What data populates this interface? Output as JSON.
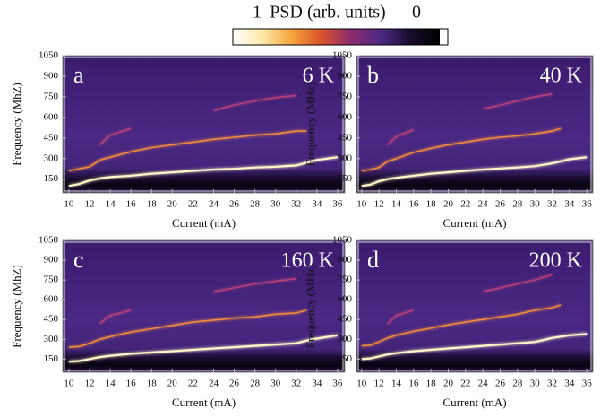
{
  "chart_data": [
    {
      "type": "colorbar",
      "title": "PSD (arb. units)",
      "xlim": [
        1,
        0
      ],
      "xticks": [
        1,
        0
      ],
      "colors": [
        "#ffffff",
        "#fde9a8",
        "#f7a33a",
        "#d9532c",
        "#8c2b6e",
        "#4b2a85",
        "#1a0d2e",
        "#000000"
      ]
    },
    {
      "type": "heatmap",
      "panel_label": "a",
      "annotation": "6 K",
      "xlabel": "Current (mA)",
      "ylabel": "Frequency (MhZ)",
      "xlim": [
        9.4,
        36.7
      ],
      "ylim": [
        50,
        1050
      ],
      "xticks": [
        10,
        12,
        14,
        16,
        18,
        20,
        22,
        24,
        26,
        28,
        30,
        32,
        34,
        36
      ],
      "yticks": [
        150,
        300,
        450,
        600,
        750,
        900,
        1050
      ],
      "x": [
        10,
        11,
        12,
        13,
        14,
        16,
        18,
        20,
        22,
        24,
        26,
        28,
        30,
        32,
        33,
        34,
        36
      ],
      "series": [
        {
          "color": "#fff6c8",
          "values": [
            100,
            115,
            140,
            155,
            165,
            175,
            190,
            200,
            210,
            220,
            225,
            235,
            240,
            250,
            270,
            290,
            310
          ]
        },
        {
          "color": "#f08a3c",
          "values": [
            210,
            225,
            240,
            290,
            310,
            350,
            380,
            400,
            420,
            440,
            455,
            470,
            480,
            500,
            500,
            null,
            null
          ]
        },
        {
          "color": "#b8407a",
          "values": [
            null,
            null,
            null,
            400,
            470,
            520,
            null,
            null,
            null,
            650,
            690,
            720,
            745,
            760,
            null,
            null,
            null
          ]
        }
      ]
    },
    {
      "type": "heatmap",
      "panel_label": "b",
      "annotation": "40 K",
      "xlabel": "Current (mA)",
      "ylabel": "Frequency (MHz)",
      "xlim": [
        9.4,
        36.7
      ],
      "ylim": [
        50,
        1050
      ],
      "xticks": [
        10,
        12,
        14,
        16,
        18,
        20,
        22,
        24,
        26,
        28,
        30,
        32,
        34,
        36
      ],
      "yticks": [
        150,
        300,
        450,
        600,
        750,
        900,
        1050
      ],
      "x": [
        10,
        11,
        12,
        13,
        14,
        16,
        18,
        20,
        22,
        24,
        26,
        28,
        30,
        32,
        33,
        34,
        36
      ],
      "series": [
        {
          "color": "#fff6c8",
          "values": [
            100,
            110,
            135,
            150,
            160,
            175,
            190,
            200,
            210,
            220,
            228,
            235,
            245,
            265,
            280,
            295,
            310
          ]
        },
        {
          "color": "#f08a3c",
          "values": [
            210,
            220,
            235,
            280,
            300,
            345,
            375,
            400,
            420,
            440,
            455,
            465,
            480,
            500,
            520,
            null,
            null
          ]
        },
        {
          "color": "#b8407a",
          "values": [
            null,
            null,
            null,
            400,
            460,
            510,
            null,
            null,
            null,
            660,
            690,
            720,
            750,
            770,
            null,
            null,
            null
          ]
        }
      ]
    },
    {
      "type": "heatmap",
      "panel_label": "c",
      "annotation": "160 K",
      "xlabel": "Current (mA)",
      "ylabel": "Frequency (MhZ)",
      "xlim": [
        9.4,
        36.7
      ],
      "ylim": [
        50,
        1050
      ],
      "xticks": [
        10,
        12,
        14,
        16,
        18,
        20,
        22,
        24,
        26,
        28,
        30,
        32,
        34,
        36
      ],
      "yticks": [
        150,
        300,
        450,
        600,
        750,
        900,
        1050
      ],
      "x": [
        10,
        11,
        12,
        13,
        14,
        16,
        18,
        20,
        22,
        24,
        26,
        28,
        30,
        32,
        33,
        34,
        36
      ],
      "series": [
        {
          "color": "#fff6c8",
          "values": [
            130,
            135,
            150,
            165,
            175,
            190,
            200,
            210,
            220,
            230,
            240,
            250,
            260,
            270,
            290,
            305,
            330
          ]
        },
        {
          "color": "#f08a3c",
          "values": [
            240,
            245,
            270,
            300,
            320,
            355,
            380,
            405,
            430,
            445,
            460,
            470,
            490,
            500,
            520,
            null,
            null
          ]
        },
        {
          "color": "#b8407a",
          "values": [
            null,
            null,
            null,
            420,
            480,
            520,
            null,
            null,
            null,
            660,
            690,
            720,
            740,
            760,
            null,
            null,
            null
          ]
        }
      ]
    },
    {
      "type": "heatmap",
      "panel_label": "d",
      "annotation": "200 K",
      "xlabel": "Current (mA)",
      "ylabel": "Frequency (MHz)",
      "xlim": [
        9.4,
        36.7
      ],
      "ylim": [
        50,
        1050
      ],
      "xticks": [
        10,
        12,
        14,
        16,
        18,
        20,
        22,
        24,
        26,
        28,
        30,
        32,
        34,
        36
      ],
      "yticks": [
        150,
        300,
        450,
        600,
        750,
        900,
        1050
      ],
      "x": [
        10,
        11,
        12,
        13,
        14,
        16,
        18,
        20,
        22,
        24,
        26,
        28,
        30,
        32,
        33,
        34,
        36
      ],
      "series": [
        {
          "color": "#fff6c8",
          "values": [
            150,
            155,
            170,
            185,
            195,
            210,
            220,
            230,
            240,
            250,
            260,
            270,
            280,
            310,
            320,
            330,
            340
          ]
        },
        {
          "color": "#f08a3c",
          "values": [
            250,
            255,
            280,
            310,
            330,
            360,
            385,
            410,
            430,
            450,
            470,
            490,
            520,
            540,
            560,
            null,
            null
          ]
        },
        {
          "color": "#b8407a",
          "values": [
            null,
            null,
            null,
            420,
            480,
            520,
            null,
            null,
            null,
            660,
            690,
            720,
            750,
            790,
            null,
            null,
            null
          ]
        }
      ]
    }
  ]
}
